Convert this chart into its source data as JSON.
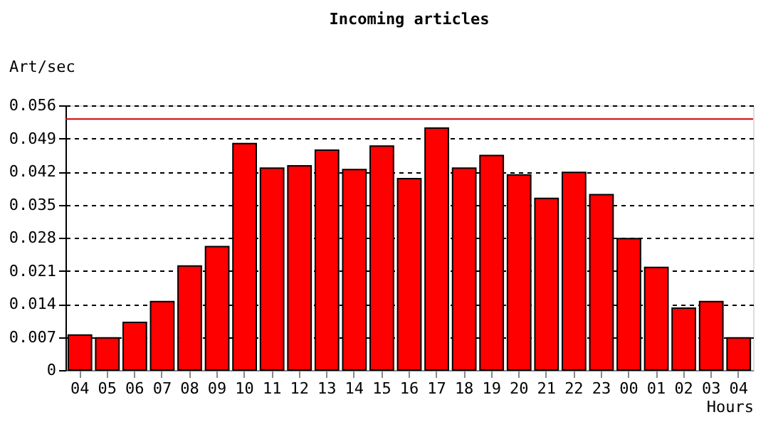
{
  "chart_data": {
    "type": "bar",
    "title": "Incoming articles",
    "ylabel": "Art/sec",
    "xlabel": "Hours",
    "categories": [
      "04",
      "05",
      "06",
      "07",
      "08",
      "09",
      "10",
      "11",
      "12",
      "13",
      "14",
      "15",
      "16",
      "17",
      "18",
      "19",
      "20",
      "21",
      "22",
      "23",
      "00",
      "01",
      "02",
      "03",
      "04"
    ],
    "values": [
      0.0074,
      0.0068,
      0.0101,
      0.0145,
      0.022,
      0.0261,
      0.0479,
      0.0427,
      0.0432,
      0.0465,
      0.0424,
      0.0474,
      0.0405,
      0.0512,
      0.0427,
      0.0454,
      0.0413,
      0.0363,
      0.0418,
      0.0371,
      0.0278,
      0.0217,
      0.0131,
      0.0145,
      0.0068
    ],
    "color": "#ff0000",
    "ylim": [
      0,
      0.056
    ],
    "yticks": [
      0,
      0.007,
      0.014,
      0.021,
      0.028,
      0.035,
      0.042,
      0.049,
      0.056
    ],
    "ref_lines": [
      {
        "axis": "y",
        "value": 0.0531,
        "color": "#cc0000"
      }
    ],
    "grid": "y"
  }
}
